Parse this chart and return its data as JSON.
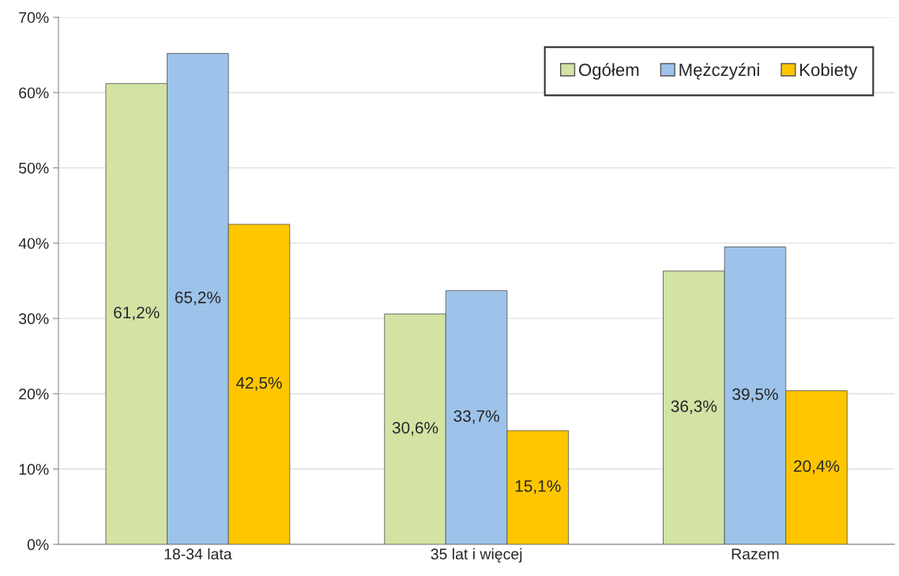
{
  "chart_data": {
    "type": "bar",
    "categories": [
      "18-34 lata",
      "35 lat i więcej",
      "Razem"
    ],
    "series": [
      {
        "name": "Ogółem",
        "color": "#d3e3a4",
        "values": [
          61.2,
          30.6,
          36.3
        ],
        "value_labels": [
          "61,2%",
          "30,6%",
          "36,3%"
        ]
      },
      {
        "name": "Mężczyźni",
        "color": "#9dc3ea",
        "values": [
          65.2,
          33.7,
          39.5
        ],
        "value_labels": [
          "65,2%",
          "33,7%",
          "39,5%"
        ]
      },
      {
        "name": "Kobiety",
        "color": "#ffc600",
        "values": [
          42.5,
          15.1,
          20.4
        ],
        "value_labels": [
          "42,5%",
          "15,1%",
          "20,4%"
        ]
      }
    ],
    "ylim": [
      0,
      70
    ],
    "yticks": [
      {
        "value": 0,
        "label": "0%"
      },
      {
        "value": 10,
        "label": "10%"
      },
      {
        "value": 20,
        "label": "20%"
      },
      {
        "value": 30,
        "label": "30%"
      },
      {
        "value": 40,
        "label": "40%"
      },
      {
        "value": 50,
        "label": "50%"
      },
      {
        "value": 60,
        "label": "60%"
      },
      {
        "value": 70,
        "label": "70%"
      }
    ],
    "grid": "y",
    "legend": "top right"
  }
}
